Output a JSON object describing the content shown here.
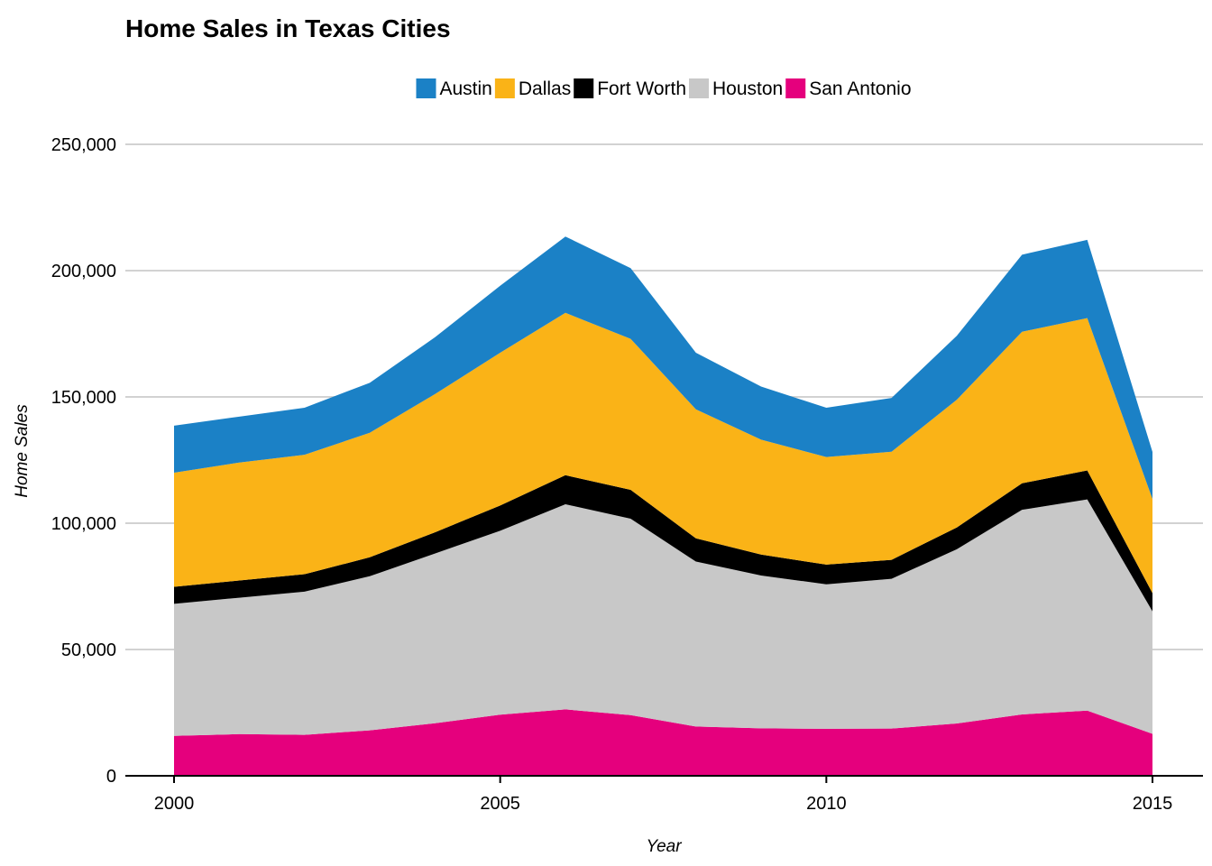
{
  "chart_data": {
    "type": "area",
    "stacked": true,
    "title": "Home Sales in Texas Cities",
    "xlabel": "Year",
    "ylabel": "Home Sales",
    "x": [
      2000,
      2001,
      2002,
      2003,
      2004,
      2005,
      2006,
      2007,
      2008,
      2009,
      2010,
      2011,
      2012,
      2013,
      2014,
      2015
    ],
    "xlim": [
      2000,
      2015
    ],
    "ylim": [
      0,
      250000
    ],
    "x_ticks": [
      "2000",
      "2005",
      "2010",
      "2015"
    ],
    "y_ticks": [
      "0",
      "50,000",
      "100,000",
      "150,000",
      "200,000",
      "250,000"
    ],
    "grid": "horizontal",
    "legend_position": "top",
    "series": [
      {
        "name": "San Antonio",
        "color": "#e5007d",
        "values": [
          15800,
          16500,
          16200,
          18000,
          20800,
          24200,
          26300,
          24000,
          19500,
          18800,
          18600,
          18700,
          20700,
          24300,
          25800,
          16600
        ]
      },
      {
        "name": "Houston",
        "color": "#c8c8c8",
        "values": [
          52300,
          54000,
          56700,
          61000,
          67200,
          72800,
          81200,
          77800,
          65300,
          60500,
          57200,
          59300,
          69000,
          81000,
          83600,
          48500
        ]
      },
      {
        "name": "Fort Worth",
        "color": "#000000",
        "values": [
          6700,
          6800,
          6900,
          7500,
          8400,
          10000,
          11500,
          11400,
          9200,
          8300,
          7800,
          7500,
          8600,
          10500,
          11500,
          7200
        ]
      },
      {
        "name": "Dallas",
        "color": "#fab317",
        "values": [
          45200,
          46700,
          47300,
          49300,
          54700,
          60500,
          64300,
          59800,
          51100,
          45500,
          42600,
          42800,
          50600,
          60000,
          60300,
          37300
        ]
      },
      {
        "name": "Austin",
        "color": "#1b81c6",
        "values": [
          18600,
          18200,
          18600,
          19800,
          22500,
          26500,
          30200,
          28000,
          22400,
          21000,
          19500,
          21300,
          25300,
          30500,
          31000,
          18600
        ]
      }
    ],
    "legend_order": [
      "Austin",
      "Dallas",
      "Fort Worth",
      "Houston",
      "San Antonio"
    ]
  }
}
